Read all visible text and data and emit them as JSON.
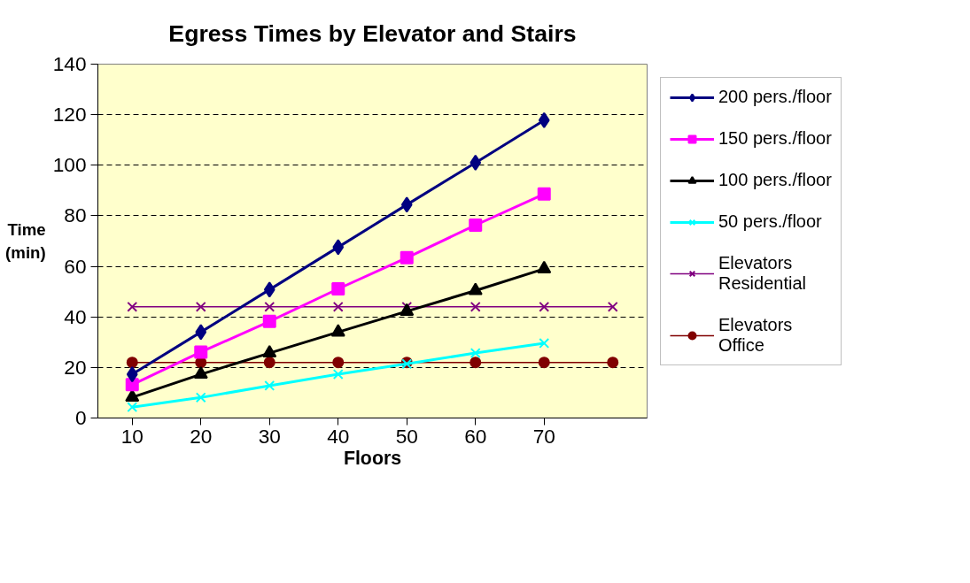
{
  "chart_data": {
    "type": "line",
    "title": "Egress Times by Elevator and Stairs",
    "xlabel": "Floors",
    "ylabel": "Time\n(min)",
    "categories": [
      "10",
      "20",
      "30",
      "40",
      "50",
      "60",
      "70",
      null
    ],
    "ylim": [
      0,
      140
    ],
    "yticks": [
      0,
      20,
      40,
      60,
      80,
      100,
      120,
      140
    ],
    "grid": "y",
    "legend": "right",
    "series": [
      {
        "name": "200 pers./floor",
        "color": "#000080",
        "marker": "diamond",
        "values": [
          17.3,
          34,
          50.8,
          67.6,
          84.4,
          101,
          117.8,
          null
        ]
      },
      {
        "name": "150 pers./floor",
        "color": "#ff00ff",
        "marker": "square",
        "values": [
          13.2,
          26.1,
          38.2,
          51.1,
          63.4,
          76.3,
          88.6,
          null
        ]
      },
      {
        "name": "100 pers./floor",
        "color": "#000000",
        "marker": "triangle",
        "values": [
          8.2,
          17.3,
          25.7,
          34,
          42.2,
          50.4,
          59,
          null
        ]
      },
      {
        "name": "50 pers./floor",
        "color": "#00ffff",
        "marker": "cross",
        "values": [
          4.3,
          8.1,
          12.8,
          17.3,
          21.4,
          25.7,
          29.6,
          null
        ]
      },
      {
        "name": "Elevators\nResidential",
        "color": "#800080",
        "marker": "cross",
        "values": [
          44,
          44,
          44,
          44,
          44,
          44,
          44,
          44
        ]
      },
      {
        "name": "Elevators\nOffice",
        "color": "#800000",
        "marker": "circle",
        "values": [
          22,
          22,
          22,
          22,
          22,
          22,
          22,
          22
        ]
      }
    ]
  }
}
